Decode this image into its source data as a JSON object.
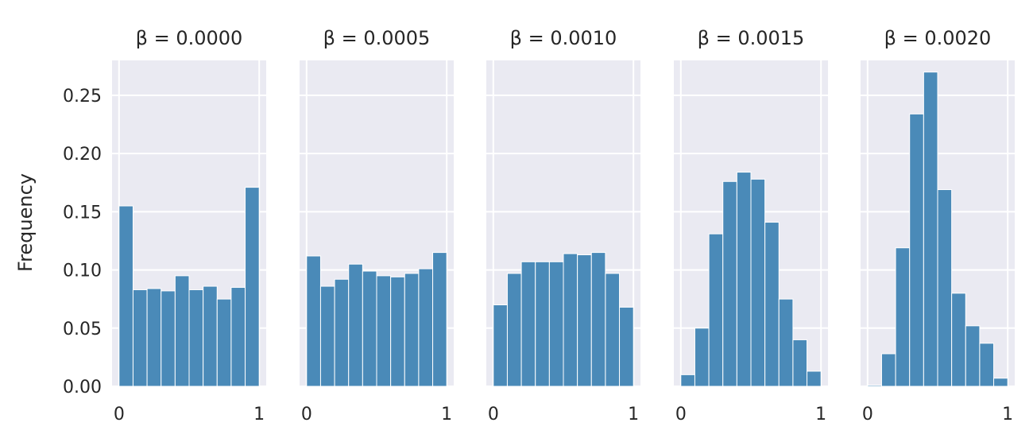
{
  "chart_data": {
    "type": "bar",
    "ylabel": "Frequency",
    "ylim": [
      0,
      0.28
    ],
    "xlim": [
      -0.05,
      1.05
    ],
    "yticks": [
      "0.00",
      "0.05",
      "0.10",
      "0.15",
      "0.20",
      "0.25"
    ],
    "ytick_values": [
      0,
      0.05,
      0.1,
      0.15,
      0.2,
      0.25
    ],
    "xticks": [
      "0",
      "1"
    ],
    "xtick_values": [
      0,
      1
    ],
    "grid": true,
    "colors": {
      "bar": "#4a8ab8",
      "panel": "#eaeaf2",
      "grid": "#ffffff"
    },
    "panels": [
      {
        "title": "β = 0.0000",
        "bin_edges": [
          0,
          0.1,
          0.2,
          0.3,
          0.4,
          0.5,
          0.6,
          0.7,
          0.8,
          0.9,
          1.0
        ],
        "values": [
          0.155,
          0.083,
          0.084,
          0.082,
          0.095,
          0.083,
          0.086,
          0.075,
          0.085,
          0.171
        ]
      },
      {
        "title": "β = 0.0005",
        "bin_edges": [
          0,
          0.1,
          0.2,
          0.3,
          0.4,
          0.5,
          0.6,
          0.7,
          0.8,
          0.9,
          1.0
        ],
        "values": [
          0.112,
          0.086,
          0.092,
          0.105,
          0.099,
          0.095,
          0.094,
          0.097,
          0.101,
          0.115
        ]
      },
      {
        "title": "β = 0.0010",
        "bin_edges": [
          0,
          0.1,
          0.2,
          0.3,
          0.4,
          0.5,
          0.6,
          0.7,
          0.8,
          0.9,
          1.0
        ],
        "values": [
          0.07,
          0.097,
          0.107,
          0.107,
          0.107,
          0.114,
          0.113,
          0.115,
          0.097,
          0.068
        ]
      },
      {
        "title": "β = 0.0015",
        "bin_edges": [
          0,
          0.1,
          0.2,
          0.3,
          0.4,
          0.5,
          0.6,
          0.7,
          0.8,
          0.9,
          1.0
        ],
        "values": [
          0.01,
          0.05,
          0.131,
          0.176,
          0.184,
          0.178,
          0.141,
          0.075,
          0.04,
          0.013
        ]
      },
      {
        "title": "β = 0.0020",
        "bin_edges": [
          0,
          0.1,
          0.2,
          0.3,
          0.4,
          0.5,
          0.6,
          0.7,
          0.8,
          0.9,
          1.0
        ],
        "values": [
          0.001,
          0.028,
          0.119,
          0.234,
          0.27,
          0.169,
          0.08,
          0.052,
          0.037,
          0.007
        ]
      }
    ]
  }
}
